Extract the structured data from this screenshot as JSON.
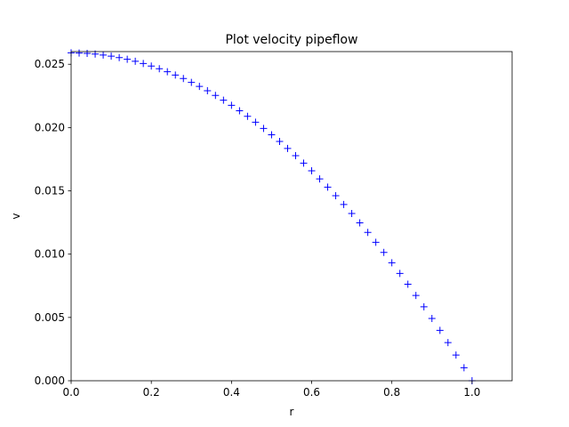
{
  "chart_data": {
    "type": "scatter",
    "title": "Plot velocity pipeflow",
    "xlabel": "r",
    "ylabel": "v",
    "xlim": [
      0.0,
      1.1
    ],
    "ylim": [
      0.0,
      0.026
    ],
    "xticks": [
      0.0,
      0.2,
      0.4,
      0.6,
      0.8,
      1.0
    ],
    "xtick_labels": [
      "0.0",
      "0.2",
      "0.4",
      "0.6",
      "0.8",
      "1.0"
    ],
    "yticks": [
      0.0,
      0.005,
      0.01,
      0.015,
      0.02,
      0.025
    ],
    "ytick_labels": [
      "0.000",
      "0.005",
      "0.010",
      "0.015",
      "0.020",
      "0.025"
    ],
    "grid": false,
    "marker": "+",
    "marker_color": "#0000ff",
    "series": [
      {
        "x": [
          0.0,
          0.02,
          0.04,
          0.06,
          0.08,
          0.1,
          0.12,
          0.14,
          0.16,
          0.18,
          0.2,
          0.22,
          0.24,
          0.26,
          0.28,
          0.3,
          0.32,
          0.34,
          0.36,
          0.38,
          0.4,
          0.42,
          0.44,
          0.46,
          0.48,
          0.5,
          0.52,
          0.54,
          0.56,
          0.58,
          0.6,
          0.62,
          0.64,
          0.66,
          0.68,
          0.7,
          0.72,
          0.74,
          0.76,
          0.78,
          0.8,
          0.82,
          0.84,
          0.86,
          0.88,
          0.9,
          0.92,
          0.94,
          0.96,
          0.98,
          1.0
        ],
        "y": [
          0.0259,
          0.02589,
          0.02586,
          0.02581,
          0.02573,
          0.02564,
          0.02553,
          0.02539,
          0.02524,
          0.02506,
          0.02486,
          0.02465,
          0.02441,
          0.02415,
          0.02387,
          0.02357,
          0.02325,
          0.02291,
          0.02254,
          0.02216,
          0.02176,
          0.02133,
          0.02089,
          0.02042,
          0.01993,
          0.01943,
          0.0189,
          0.01835,
          0.01778,
          0.01719,
          0.01658,
          0.01594,
          0.01529,
          0.01462,
          0.01392,
          0.01321,
          0.01247,
          0.01172,
          0.01094,
          0.01014,
          0.00932,
          0.00848,
          0.00762,
          0.00674,
          0.00584,
          0.00492,
          0.00398,
          0.00301,
          0.00203,
          0.00103,
          0.0
        ]
      }
    ]
  }
}
